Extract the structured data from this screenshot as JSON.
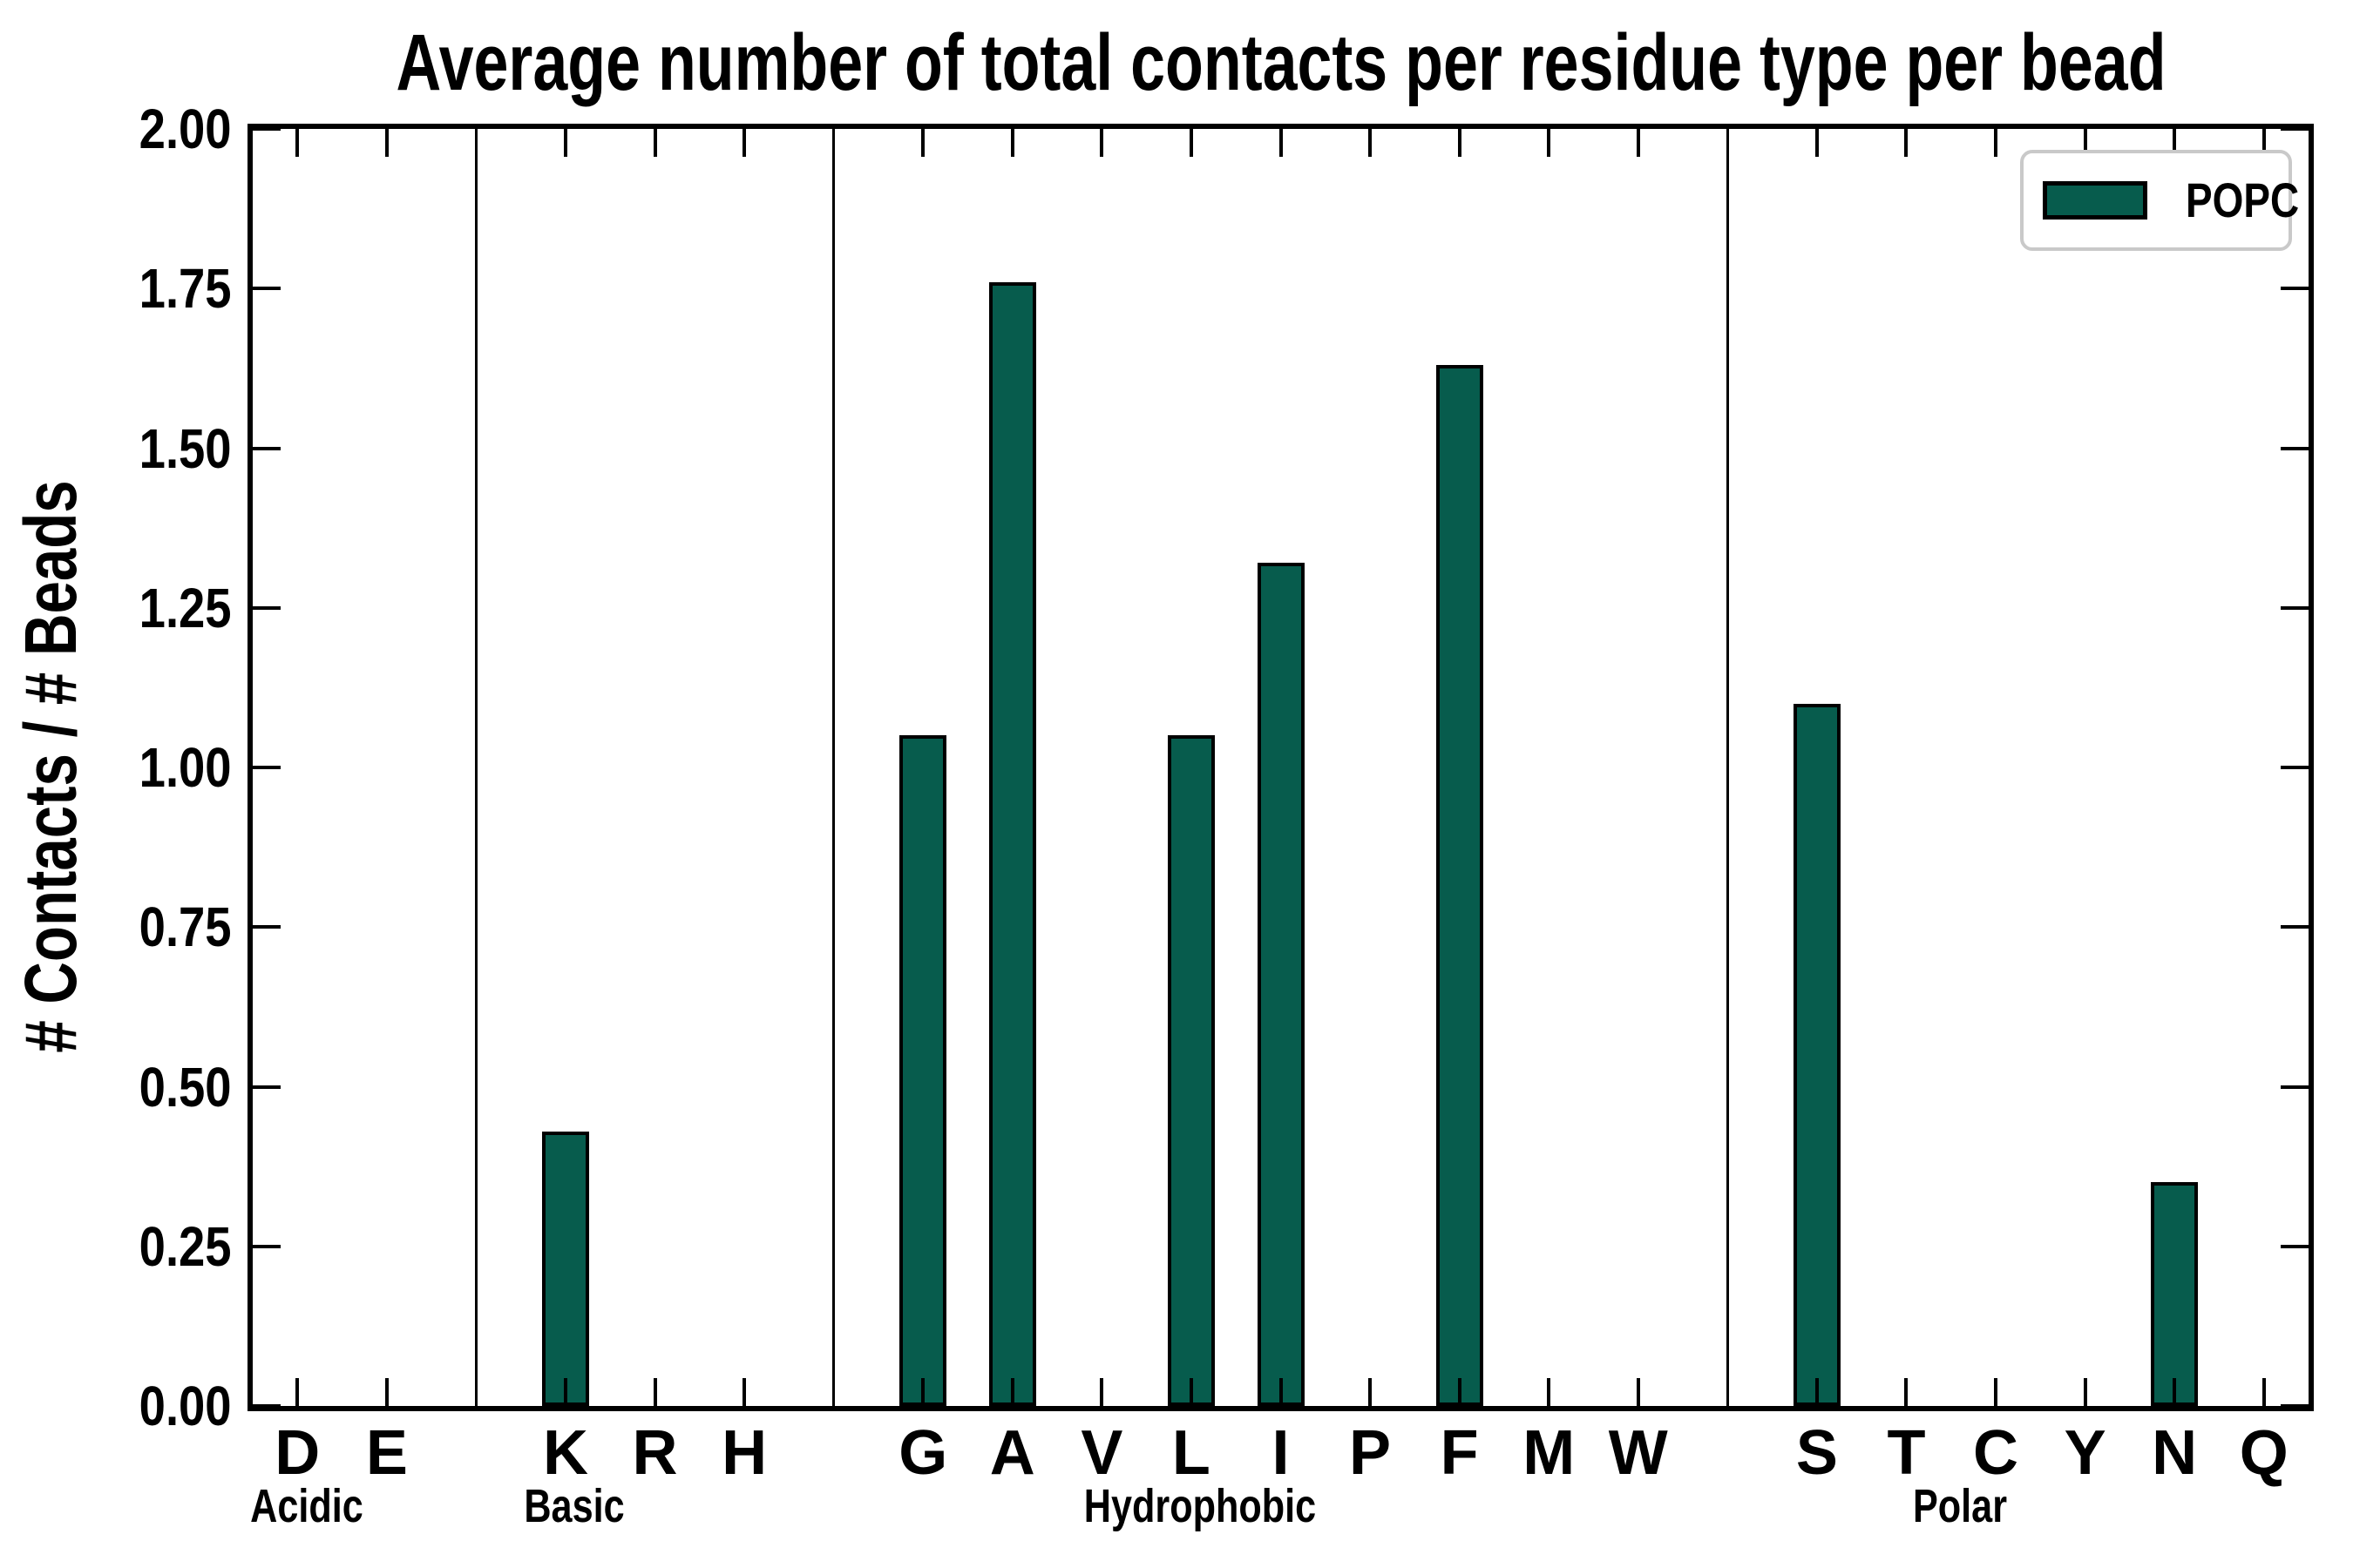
{
  "title": "Average number of total contacts per residue type per bead",
  "y_axis_label": "# Contacts / # Beads",
  "legend": {
    "label": "POPC"
  },
  "colors": {
    "bar_fill": "#075C4D",
    "bar_edge": "#000000",
    "axis": "#000000",
    "legend_border": "#C9C9C9"
  },
  "chart_data": {
    "type": "bar",
    "title": "Average number of total contacts per residue type per bead",
    "ylabel": "# Contacts / # Beads",
    "series_name": "POPC",
    "legend_position": "upper right",
    "grid": false,
    "ylim": [
      0,
      2.0
    ],
    "yticks": [
      "2.00",
      "1.75",
      "1.50",
      "1.25",
      "1.00",
      "0.75",
      "0.50",
      "0.25",
      "0.00"
    ],
    "categories": [
      "D",
      "E",
      "K",
      "R",
      "H",
      "G",
      "A",
      "V",
      "L",
      "I",
      "P",
      "F",
      "M",
      "W",
      "S",
      "T",
      "C",
      "Y",
      "N",
      "Q"
    ],
    "values": [
      0,
      0,
      0.43,
      0,
      0,
      1.05,
      1.76,
      0,
      1.05,
      1.32,
      0,
      1.63,
      0,
      0,
      1.1,
      0,
      0,
      0,
      0.35,
      0
    ],
    "groups": [
      {
        "label": "Acidic",
        "categories": [
          "D",
          "E"
        ]
      },
      {
        "label": "Basic",
        "categories": [
          "K",
          "R",
          "H"
        ]
      },
      {
        "label": "Hydrophobic",
        "categories": [
          "G",
          "A",
          "V",
          "L",
          "I",
          "P",
          "F",
          "M",
          "W"
        ]
      },
      {
        "label": "Polar",
        "categories": [
          "S",
          "T",
          "C",
          "Y",
          "N",
          "Q"
        ]
      }
    ]
  }
}
